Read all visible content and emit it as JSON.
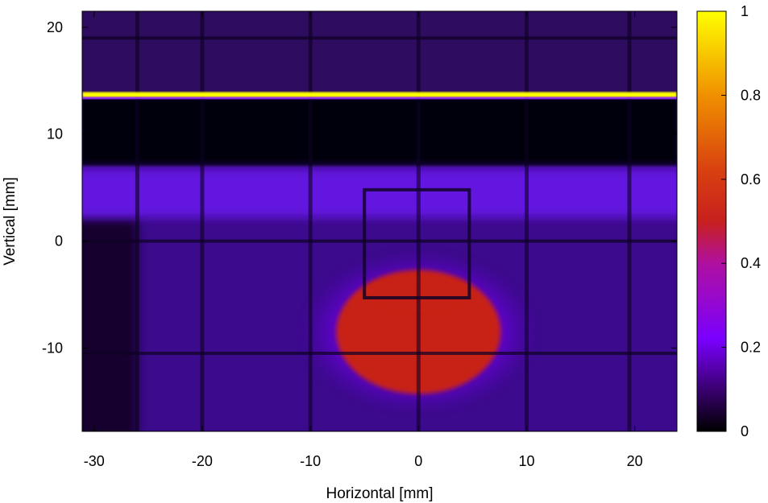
{
  "chart_data": {
    "type": "heatmap",
    "title": "",
    "xlabel": "Horizontal [mm]",
    "ylabel": "Vertical [mm]",
    "xlim": [
      -31.1,
      23.9
    ],
    "ylim": [
      -17.8,
      21.5
    ],
    "xticks": [
      -30,
      -20,
      -10,
      0,
      10,
      20
    ],
    "yticks": [
      -10,
      0,
      10,
      20
    ],
    "x_tick_labels": [
      "-30",
      "-20",
      "-10",
      "0",
      "10",
      "20"
    ],
    "y_tick_labels": [
      "-10",
      "0",
      "10",
      "20"
    ],
    "colorbar": {
      "min": 0,
      "max": 1,
      "ticks": [
        0,
        0.2,
        0.4,
        0.6,
        0.8,
        1
      ],
      "tick_labels": [
        "0",
        "0.2",
        "0.4",
        "0.6",
        "0.8",
        "1"
      ],
      "colormap": [
        "#000000",
        "#3a0070",
        "#7a00ff",
        "#c21a6a",
        "#d83e12",
        "#e88000",
        "#ffff00"
      ]
    },
    "features": {
      "bright_band_y": 13.8,
      "bright_band_value": 1.0,
      "dark_band_y": [
        7,
        13.3
      ],
      "purple_band_y": [
        2.2,
        6.8
      ],
      "purple_band_value": 0.22,
      "background_value": 0.12,
      "hot_spot_center": [
        0,
        -8.5
      ],
      "hot_spot_value": 0.5,
      "grid_lines_x": [
        -26,
        -20,
        -10,
        0,
        10,
        19.5
      ],
      "grid_lines_y": [
        0,
        -10.5,
        19
      ]
    }
  }
}
